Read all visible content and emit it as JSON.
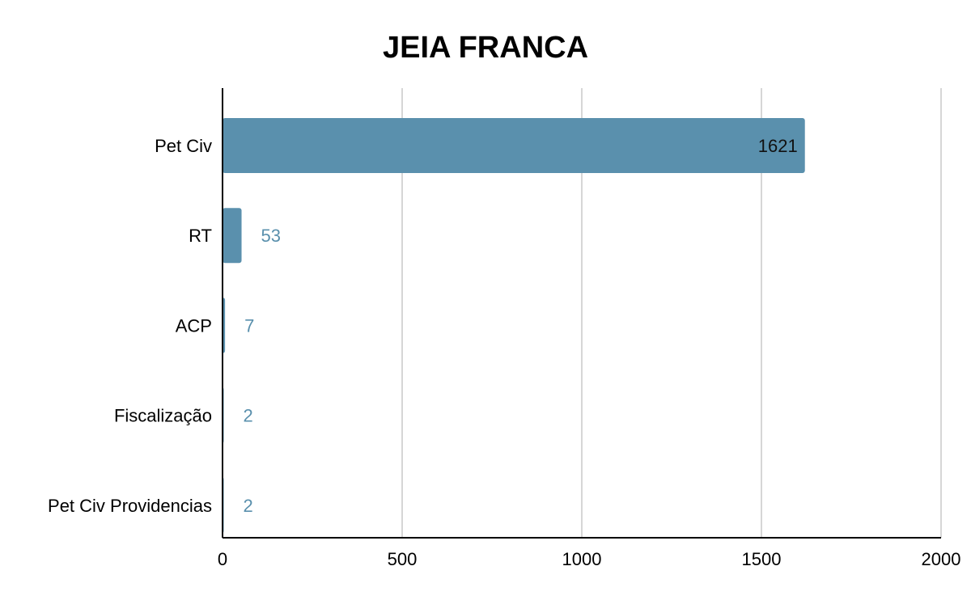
{
  "chart_data": {
    "type": "bar",
    "orientation": "horizontal",
    "title": "JEIA FRANCA",
    "categories": [
      "Pet Civ",
      "RT",
      "ACP",
      "Fiscalização",
      "Pet Civ Providencias"
    ],
    "values": [
      1621,
      53,
      7,
      2,
      2
    ],
    "data_labels": [
      "1621",
      "53",
      "7",
      "2",
      "2"
    ],
    "xlim": [
      0,
      2000
    ],
    "xticks": [
      "0",
      "500",
      "1000",
      "1500",
      "2000"
    ],
    "xticks_values": [
      0,
      500,
      1000,
      1500,
      2000
    ],
    "grid": "vertical",
    "legend": "none",
    "colors": {
      "bar": "#5A90AD",
      "label_outside": "#5A90AD",
      "label_inside": "#111111",
      "grid": "#c8c8c8",
      "axis": "#000000"
    }
  }
}
